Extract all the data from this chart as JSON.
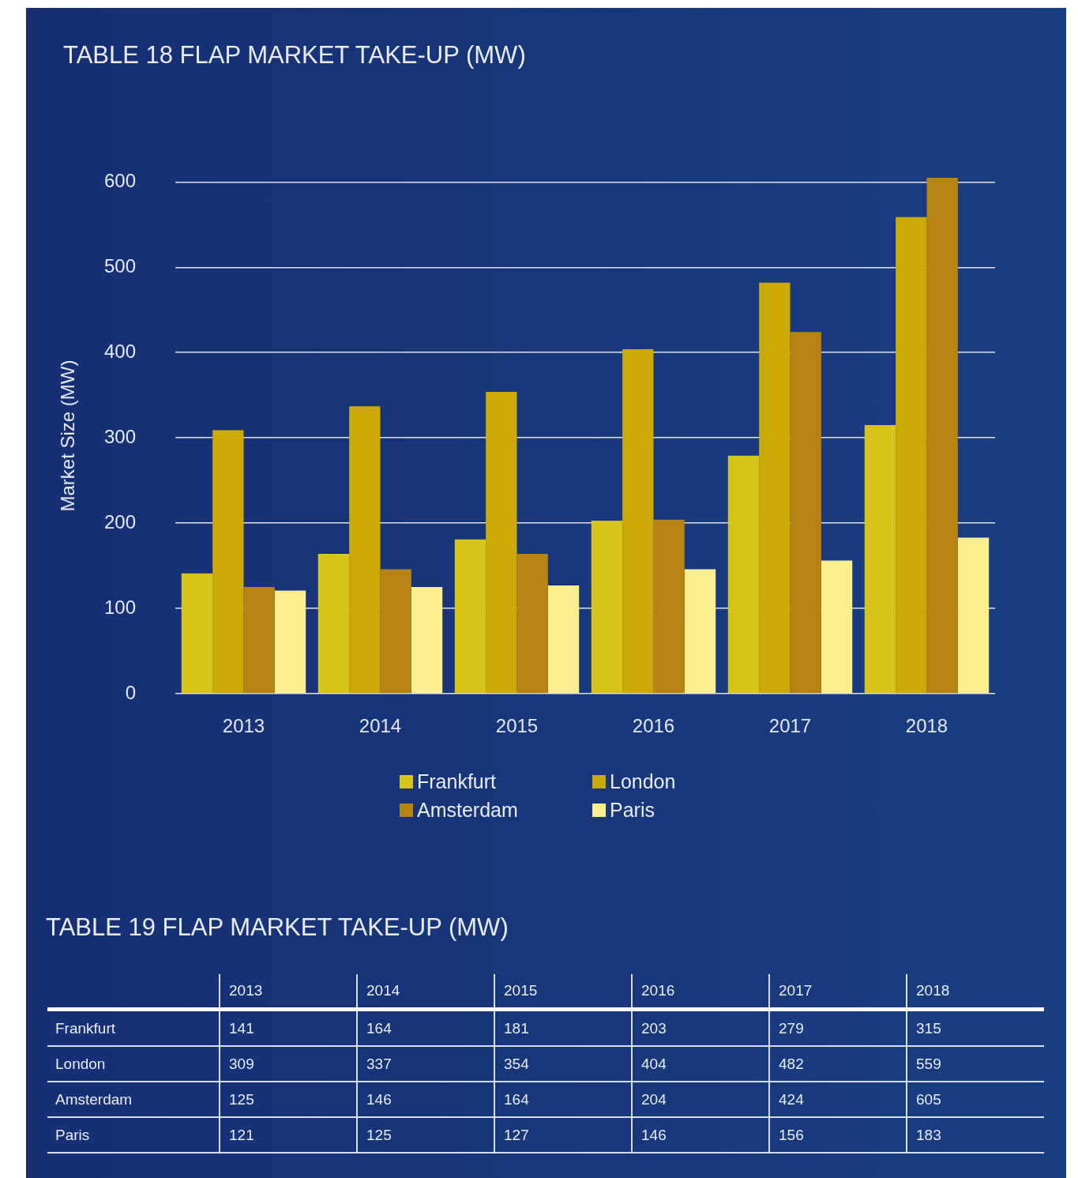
{
  "chart_data": {
    "type": "bar",
    "title": "TABLE 18 FLAP MARKET TAKE-UP (MW)",
    "ylabel": "Market Size (MW)",
    "categories": [
      "2013",
      "2014",
      "2015",
      "2016",
      "2017",
      "2018"
    ],
    "series": [
      {
        "name": "Frankfurt",
        "color": "#d6c418",
        "values": [
          141,
          164,
          181,
          203,
          279,
          315
        ]
      },
      {
        "name": "London",
        "color": "#cba906",
        "values": [
          309,
          337,
          354,
          404,
          482,
          559
        ]
      },
      {
        "name": "Amsterdam",
        "color": "#b78414",
        "values": [
          125,
          146,
          164,
          204,
          424,
          605
        ]
      },
      {
        "name": "Paris",
        "color": "#fbee91",
        "values": [
          121,
          125,
          127,
          146,
          156,
          183
        ]
      }
    ],
    "ylim": [
      0,
      605
    ],
    "yticks": [
      0,
      100,
      200,
      300,
      400,
      500,
      600
    ],
    "grid": "y",
    "legend": "bottom",
    "data_labels": true,
    "annotations": [
      "TABLE 19 FLAP MARKET TAKE-UP (MW)"
    ]
  }
}
